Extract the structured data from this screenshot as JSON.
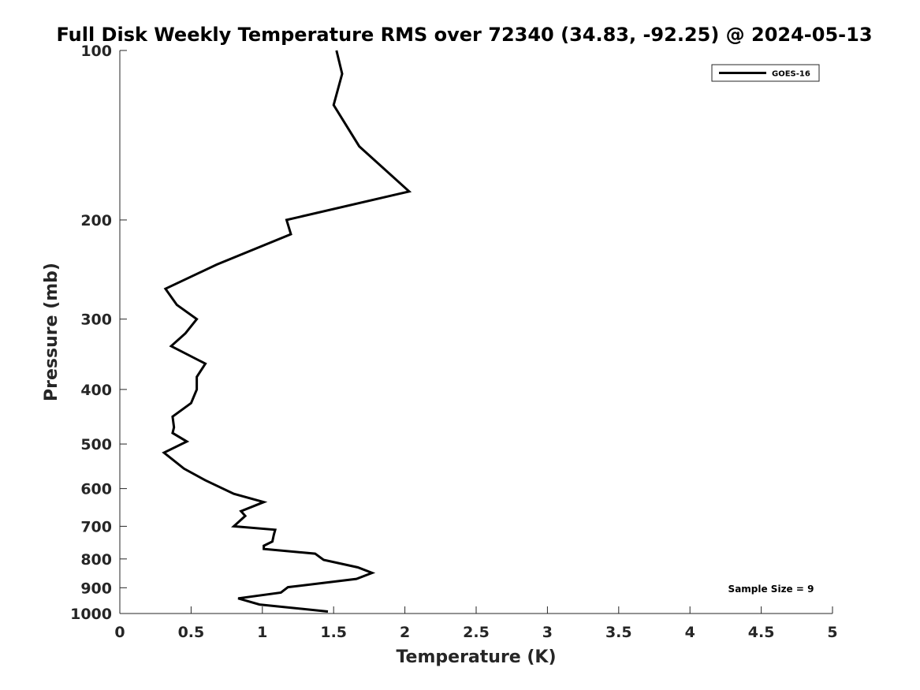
{
  "chart_data": {
    "type": "line",
    "title": "Full Disk Weekly Temperature RMS over 72340 (34.83, -92.25) @ 2024-05-13",
    "xlabel": "Temperature (K)",
    "ylabel": "Pressure (mb)",
    "xlim": [
      0,
      5
    ],
    "ylim": [
      100,
      1000
    ],
    "y_scale": "log",
    "y_reversed": true,
    "grid": false,
    "legend_position": "top-right",
    "x_ticks": [
      0,
      0.5,
      1,
      1.5,
      2,
      2.5,
      3,
      3.5,
      4,
      4.5,
      5
    ],
    "x_tick_labels": [
      "0",
      "0.5",
      "1",
      "1.5",
      "2",
      "2.5",
      "3",
      "3.5",
      "4",
      "4.5",
      "5"
    ],
    "y_ticks": [
      100,
      200,
      300,
      400,
      500,
      600,
      700,
      800,
      900,
      1000
    ],
    "y_tick_labels": [
      "100",
      "200",
      "300",
      "400",
      "500",
      "600",
      "700",
      "800",
      "900",
      "1000"
    ],
    "series": [
      {
        "name": "GOES-16",
        "color": "#000000",
        "x": [
          1.52,
          1.56,
          1.5,
          1.68,
          2.03,
          1.17,
          1.2,
          0.68,
          0.32,
          0.4,
          0.54,
          0.46,
          0.36,
          0.6,
          0.54,
          0.54,
          0.5,
          0.37,
          0.38,
          0.37,
          0.47,
          0.31,
          0.45,
          0.6,
          0.8,
          1.01,
          0.85,
          0.88,
          0.8,
          1.09,
          1.08,
          1.07,
          1.01,
          1.01,
          1.37,
          1.43,
          1.67,
          1.77,
          1.66,
          1.18,
          1.13,
          0.83,
          0.98,
          1.46
        ],
        "y": [
          100,
          110,
          125,
          148,
          178,
          200,
          212,
          240,
          265,
          283,
          300,
          318,
          335,
          360,
          380,
          400,
          423,
          447,
          467,
          478,
          495,
          518,
          553,
          580,
          613,
          634,
          658,
          671,
          700,
          710,
          725,
          745,
          758,
          768,
          783,
          803,
          828,
          847,
          868,
          898,
          918,
          940,
          964,
          992
        ]
      }
    ],
    "annotations": [
      "Sample Size = 9"
    ]
  }
}
